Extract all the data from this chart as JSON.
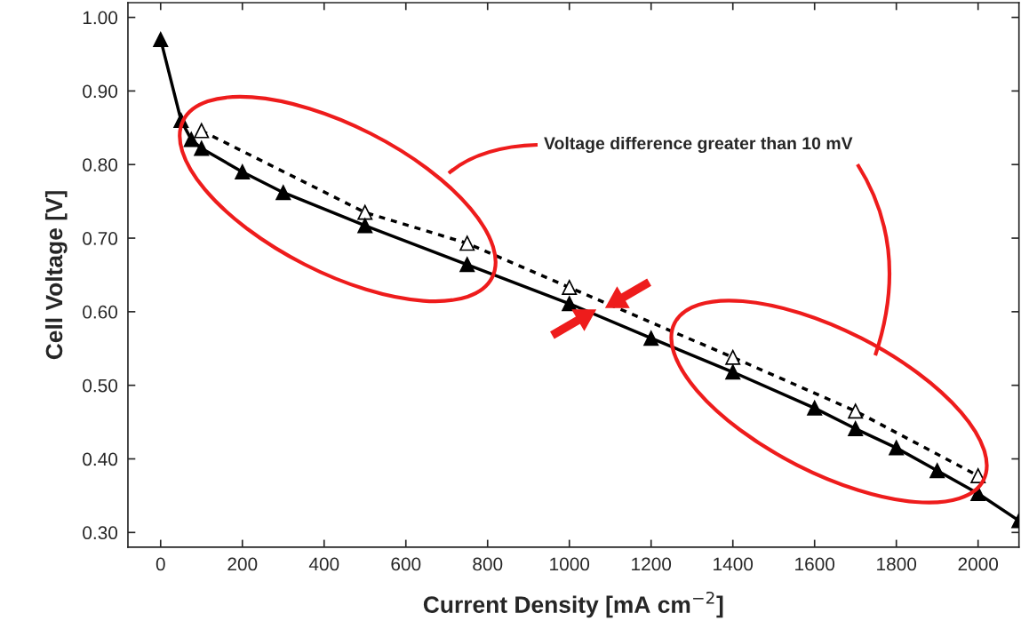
{
  "chart_data": {
    "type": "line",
    "xlabel": "Current Density [mA cm$^{−2}$]",
    "ylabel": "Cell Voltage [V]",
    "xlim": [
      -80,
      2100
    ],
    "ylim": [
      0.28,
      1.02
    ],
    "xticks": [
      0,
      200,
      400,
      600,
      800,
      1000,
      1200,
      1400,
      1600,
      1800,
      2000
    ],
    "yticks": [
      {
        "value": 0.3,
        "label": "0.30"
      },
      {
        "value": 0.4,
        "label": "0.40"
      },
      {
        "value": 0.5,
        "label": "0.50"
      },
      {
        "value": 0.6,
        "label": "0.60"
      },
      {
        "value": 0.7,
        "label": "0.70"
      },
      {
        "value": 0.8,
        "label": "0.80"
      },
      {
        "value": 0.9,
        "label": "0.90"
      },
      {
        "value": 1.0,
        "label": "1.00"
      }
    ],
    "grid": false,
    "marker": "triangle",
    "series": [
      {
        "color": "#000000",
        "line_style": "solid",
        "x": [
          0,
          50,
          75,
          100,
          200,
          300,
          500,
          750,
          1000,
          1200,
          1400,
          1600,
          1700,
          1800,
          1900,
          2000,
          2100
        ],
        "values": [
          0.97,
          0.86,
          0.834,
          0.822,
          0.79,
          0.762,
          0.717,
          0.664,
          0.611,
          0.564,
          0.518,
          0.469,
          0.441,
          0.415,
          0.384,
          0.353,
          0.316
        ]
      },
      {
        "color": "#000000",
        "line_style": "dashed",
        "x": [
          100,
          500,
          750,
          1000,
          1400,
          1700,
          2000
        ],
        "values": [
          0.846,
          0.735,
          0.693,
          0.633,
          0.538,
          0.465,
          0.377
        ]
      }
    ],
    "annotations": [
      "Voltage difference greater than 10 mV"
    ]
  }
}
